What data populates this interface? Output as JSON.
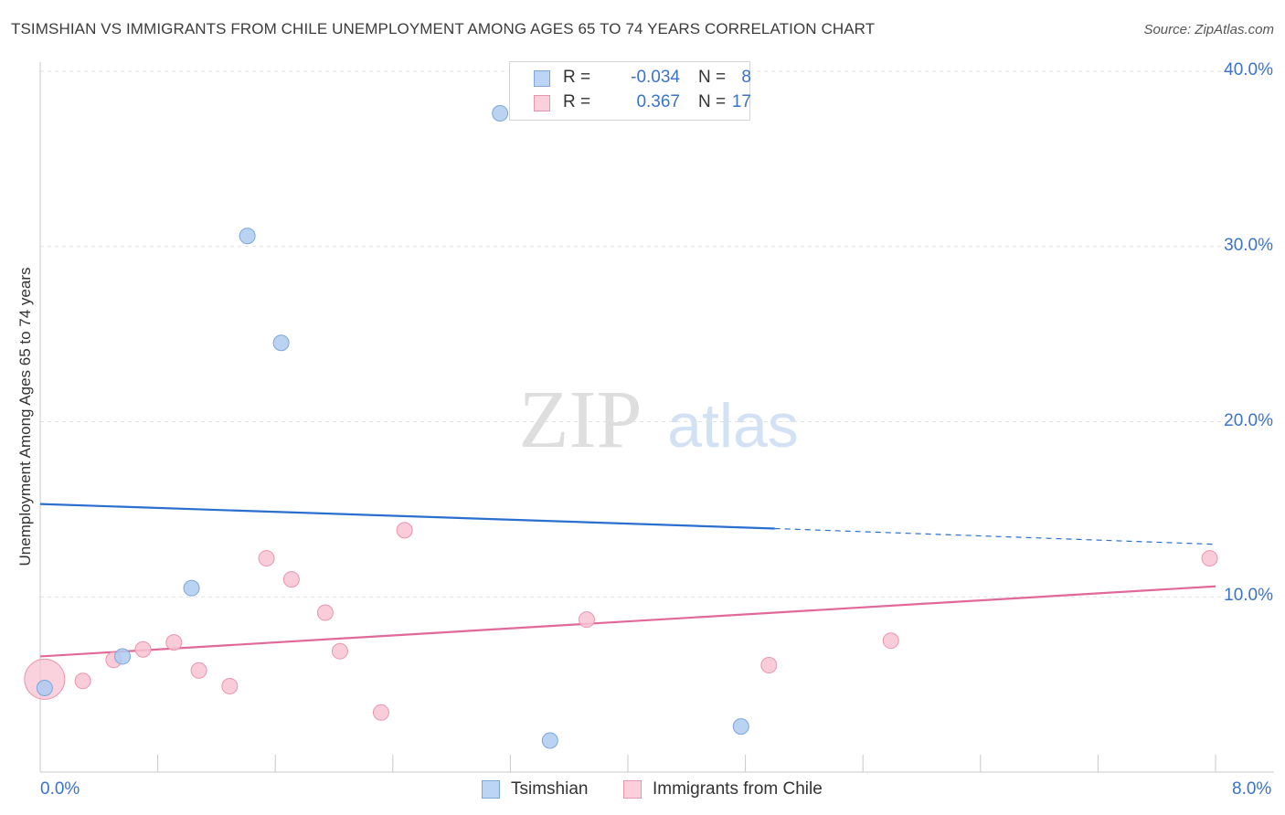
{
  "chart_data": {
    "type": "scatter",
    "title": "TSIMSHIAN VS IMMIGRANTS FROM CHILE UNEMPLOYMENT AMONG AGES 65 TO 74 YEARS CORRELATION CHART",
    "source": "Source: ZipAtlas.com",
    "watermark": {
      "zip": "ZIP",
      "atlas": "atlas"
    },
    "xlabel": "",
    "ylabel": "Unemployment Among Ages 65 to 74 years",
    "xlim": [
      0.0,
      8.0
    ],
    "ylim": [
      0.0,
      40.0
    ],
    "x_tick_labels": [
      "0.0%",
      "8.0%"
    ],
    "y_ticks": [
      10,
      20,
      30,
      40
    ],
    "y_tick_labels": [
      "10.0%",
      "20.0%",
      "30.0%",
      "40.0%"
    ],
    "grid": true,
    "legend_position": "top-center",
    "series": [
      {
        "name": "Tsimshian",
        "color": "#aecbf0",
        "edge_color": "#7aa6dc",
        "line_color": "#2a6fcf",
        "R": "-0.034",
        "N": "8",
        "points": [
          {
            "x": 0.03,
            "y": 4.8
          },
          {
            "x": 0.56,
            "y": 6.6
          },
          {
            "x": 1.03,
            "y": 10.5
          },
          {
            "x": 1.41,
            "y": 30.6
          },
          {
            "x": 1.64,
            "y": 24.5
          },
          {
            "x": 3.13,
            "y": 37.6
          },
          {
            "x": 3.47,
            "y": 1.8
          },
          {
            "x": 4.77,
            "y": 2.6
          }
        ],
        "trend_solid": {
          "x0": 0.0,
          "y0": 15.3,
          "x1": 5.0,
          "y1": 13.9
        },
        "trend_dashed": {
          "x0": 5.0,
          "y0": 13.9,
          "x1": 8.0,
          "y1": 13.0
        }
      },
      {
        "name": "Immigrants from Chile",
        "color": "#f8c3d2",
        "edge_color": "#eb94ae",
        "line_color": "#e0699a",
        "R": "0.367",
        "N": "17",
        "points": [
          {
            "x": 0.03,
            "y": 5.3,
            "big": true
          },
          {
            "x": 0.29,
            "y": 5.2
          },
          {
            "x": 0.5,
            "y": 6.4
          },
          {
            "x": 0.7,
            "y": 7.0
          },
          {
            "x": 0.91,
            "y": 7.4
          },
          {
            "x": 1.08,
            "y": 5.8
          },
          {
            "x": 1.29,
            "y": 4.9
          },
          {
            "x": 1.54,
            "y": 12.2
          },
          {
            "x": 1.71,
            "y": 11.0
          },
          {
            "x": 1.94,
            "y": 9.1
          },
          {
            "x": 2.04,
            "y": 6.9
          },
          {
            "x": 2.32,
            "y": 3.4
          },
          {
            "x": 2.48,
            "y": 13.8
          },
          {
            "x": 3.72,
            "y": 8.7
          },
          {
            "x": 4.96,
            "y": 6.1
          },
          {
            "x": 5.79,
            "y": 7.5
          },
          {
            "x": 7.96,
            "y": 12.2
          }
        ],
        "trend_solid": {
          "x0": 0.0,
          "y0": 6.6,
          "x1": 8.0,
          "y1": 10.6
        }
      }
    ]
  }
}
